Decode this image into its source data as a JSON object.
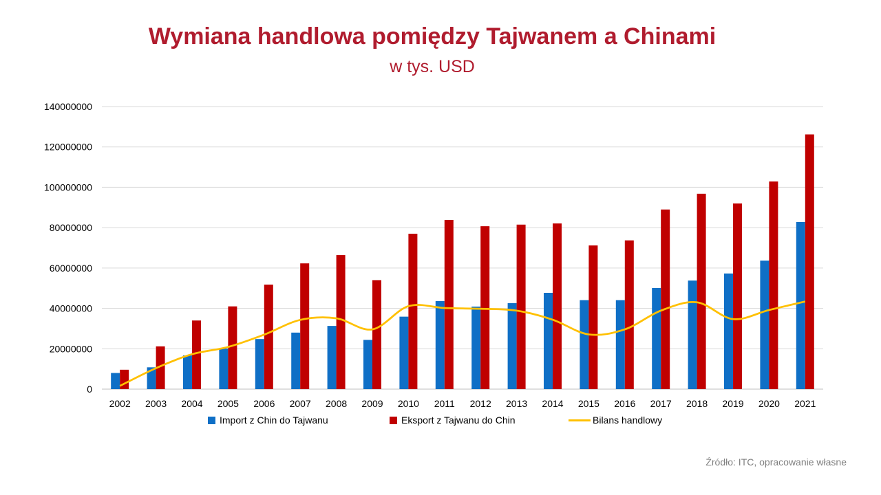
{
  "colors": {
    "import": "#0f6fc6",
    "export": "#c00000",
    "balance": "#ffc000",
    "grid": "#d9d9d9",
    "title": "#b01c2e"
  },
  "source": "Źródło: ITC, opracowanie własne",
  "chart_data": {
    "type": "bar",
    "title": "Wymiana handlowa pomiędzy Tajwanem a Chinami",
    "subtitle": "w tys. USD",
    "xlabel": "",
    "ylabel": "",
    "ylim": [
      0,
      140000000
    ],
    "yticks": [
      "0",
      "20000000",
      "40000000",
      "60000000",
      "80000000",
      "100000000",
      "120000000",
      "140000000"
    ],
    "grid": true,
    "legend": "bottom",
    "categories": [
      "2002",
      "2003",
      "2004",
      "2005",
      "2006",
      "2007",
      "2008",
      "2009",
      "2010",
      "2011",
      "2012",
      "2013",
      "2014",
      "2015",
      "2016",
      "2017",
      "2018",
      "2019",
      "2020",
      "2021"
    ],
    "series": [
      {
        "name": "Import z Chin do Tajwanu",
        "type": "bar",
        "color": "#0f6fc6",
        "values": [
          8000000,
          10800000,
          16700000,
          20100000,
          24800000,
          28000000,
          31300000,
          24400000,
          35900000,
          43600000,
          40900000,
          42600000,
          47700000,
          44100000,
          44100000,
          50100000,
          53800000,
          57300000,
          63700000,
          82800000
        ]
      },
      {
        "name": "Eksport z Tajwanu do Chin",
        "type": "bar",
        "color": "#c00000",
        "values": [
          9600000,
          21200000,
          34000000,
          41000000,
          51800000,
          62300000,
          66400000,
          54000000,
          77000000,
          83800000,
          80700000,
          81500000,
          82100000,
          71200000,
          73700000,
          89000000,
          96800000,
          92000000,
          102900000,
          126200000
        ]
      },
      {
        "name": "Bilans handlowy",
        "type": "line",
        "color": "#ffc000",
        "values": [
          1600000,
          10400000,
          17300000,
          20900000,
          27000000,
          34300000,
          35100000,
          29600000,
          41100000,
          40200000,
          39800000,
          38900000,
          34400000,
          27100000,
          29600000,
          38900000,
          43000000,
          34700000,
          39200000,
          43400000
        ]
      }
    ]
  }
}
